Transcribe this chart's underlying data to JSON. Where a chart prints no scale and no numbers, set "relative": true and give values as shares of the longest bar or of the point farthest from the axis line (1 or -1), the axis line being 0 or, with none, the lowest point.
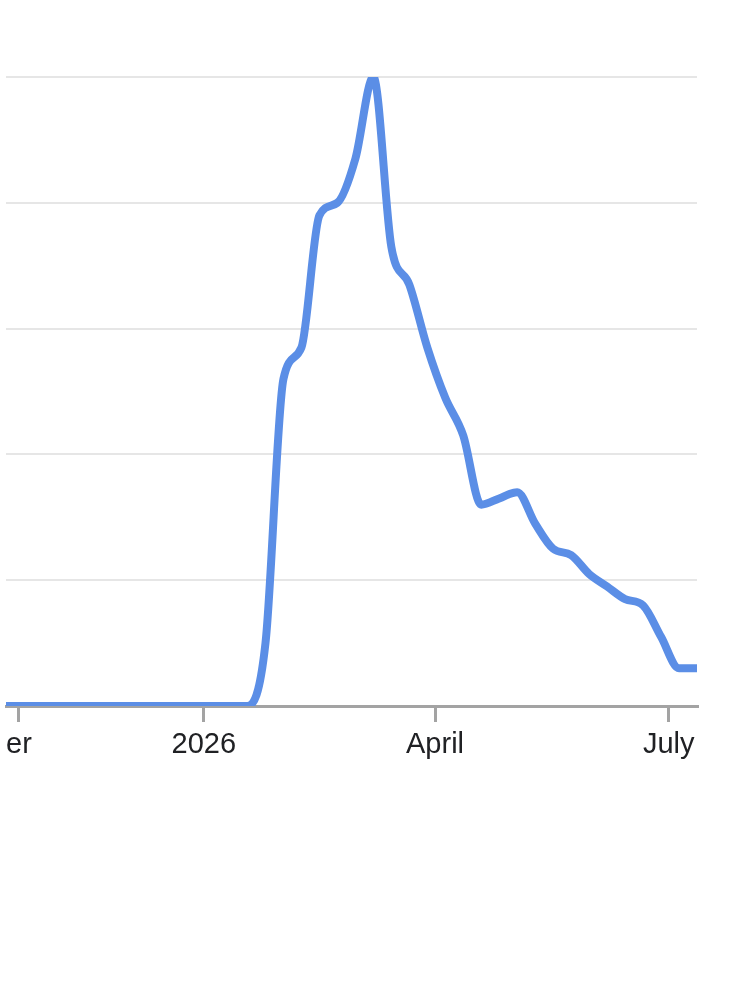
{
  "chart_data": {
    "type": "line",
    "relative": true,
    "x": [
      "2025-10-16",
      "2026-01-18",
      "2026-01-25",
      "2026-02-01",
      "2026-02-08",
      "2026-02-15",
      "2026-02-22",
      "2026-03-01",
      "2026-03-08",
      "2026-03-15",
      "2026-03-22",
      "2026-03-29",
      "2026-04-05",
      "2026-04-12",
      "2026-04-19",
      "2026-04-26",
      "2026-05-03",
      "2026-05-10",
      "2026-05-17",
      "2026-05-24",
      "2026-05-31",
      "2026-06-07",
      "2026-06-14",
      "2026-06-21",
      "2026-06-28",
      "2026-07-05",
      "2026-07-12"
    ],
    "series": [
      {
        "color": "#5b8ee6",
        "values": [
          0,
          0,
          0.1,
          0.52,
          0.57,
          0.78,
          0.8,
          0.87,
          1,
          0.73,
          0.67,
          0.57,
          0.49,
          0.43,
          0.32,
          0.33,
          0.34,
          0.29,
          0.25,
          0.24,
          0.21,
          0.19,
          0.17,
          0.16,
          0.11,
          0.06,
          0.06
        ]
      }
    ],
    "xlim": [
      "2025-10-16",
      "2026-07-12"
    ],
    "xticks": [
      {
        "value": "2025-10-21",
        "label": "er"
      },
      {
        "value": "2026-01-01",
        "label": "2026"
      },
      {
        "value": "2026-04-01",
        "label": "April"
      },
      {
        "value": "2026-07-01",
        "label": "July"
      }
    ],
    "grid": "y",
    "marker": "none",
    "line_style": "solid"
  }
}
